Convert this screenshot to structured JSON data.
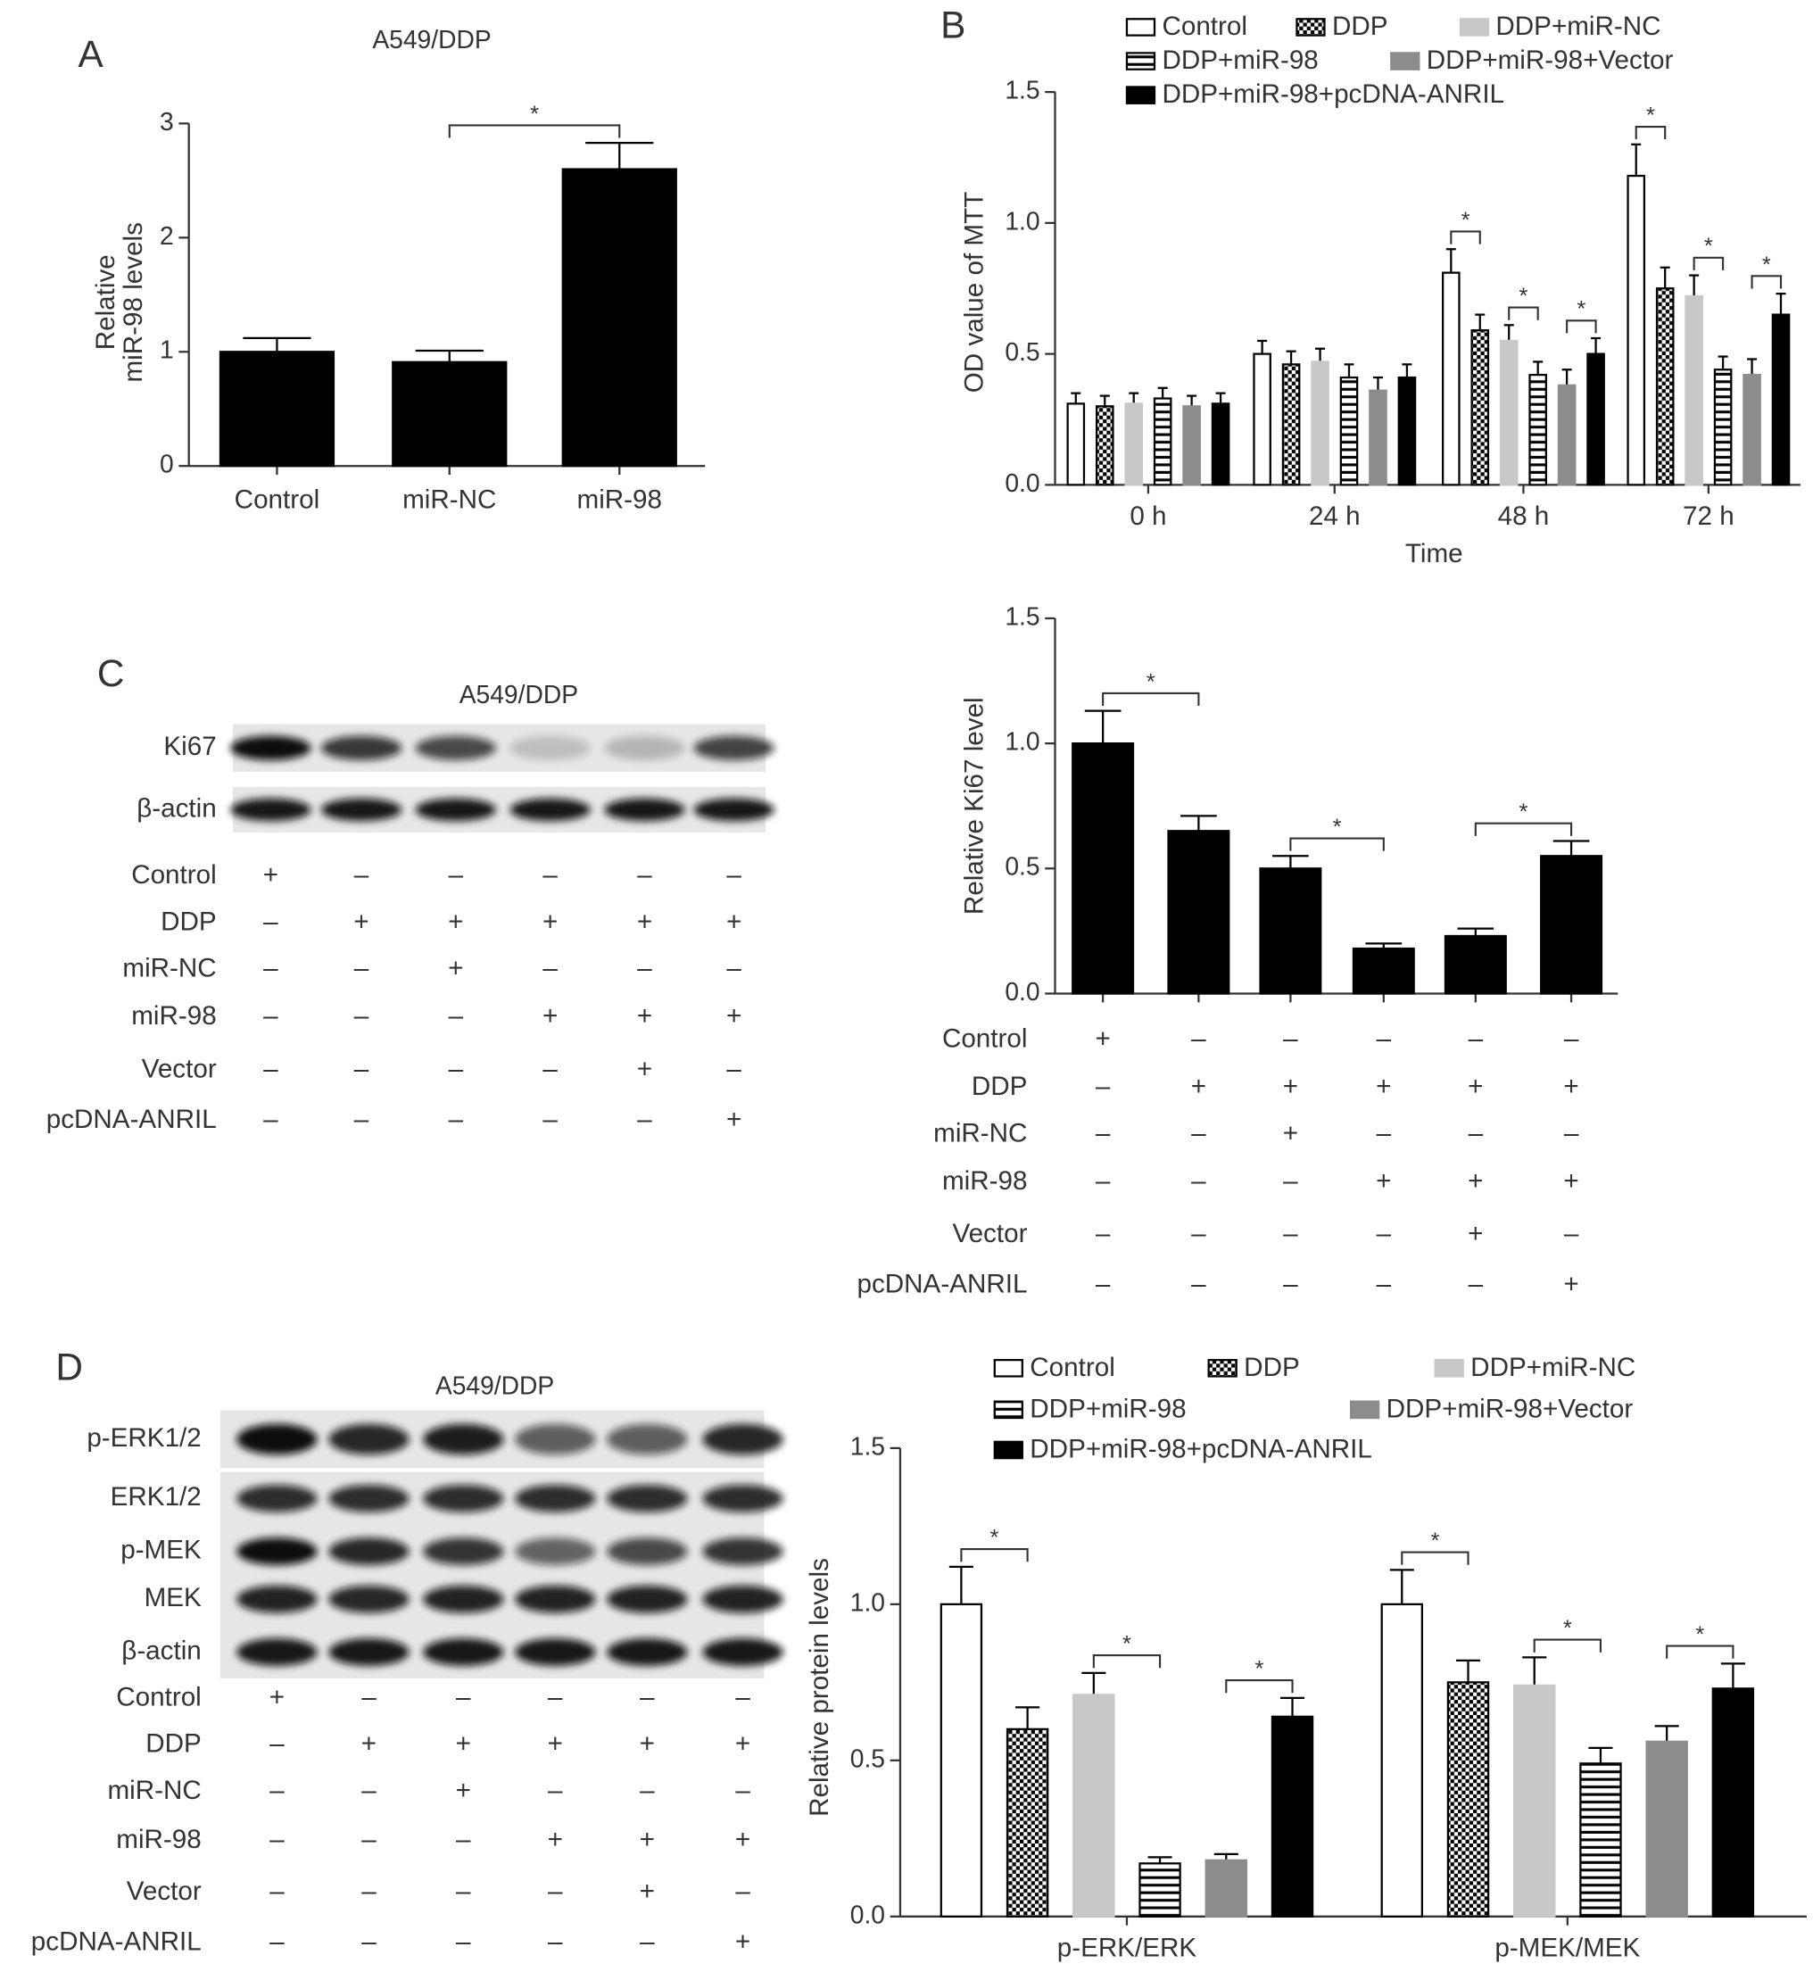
{
  "panel_labels": [
    "A",
    "B",
    "C",
    "D"
  ],
  "chart_data": [
    {
      "type": "bar",
      "title": "A549/DDP",
      "categories": [
        "Control",
        "miR-NC",
        "miR-98"
      ],
      "values": [
        1.0,
        0.91,
        2.6
      ],
      "errors": [
        0.12,
        0.1,
        0.23
      ],
      "color": "#000000",
      "ylabel": [
        "Relative",
        "miR-98 levels"
      ],
      "ylim": [
        0,
        3
      ],
      "yticks": [
        0,
        1,
        2,
        3
      ],
      "significance": [
        {
          "between": [
            1,
            2
          ],
          "label": "*"
        }
      ]
    },
    {
      "type": "grouped_bar",
      "categories": [
        "0 h",
        "24 h",
        "48 h",
        "72 h"
      ],
      "xlabel": "Time",
      "ylabel": "OD value of MTT",
      "ylim": [
        0,
        1.5
      ],
      "yticks": [
        {
          "value": 0,
          "label": "0.0"
        },
        {
          "value": 0.5,
          "label": "0.5"
        },
        {
          "value": 1,
          "label": "1.0"
        },
        {
          "value": 1.5,
          "label": "1.5"
        }
      ],
      "series": [
        {
          "name": "Control",
          "color": "#ffffff",
          "pattern": "none",
          "values": [
            0.31,
            0.5,
            0.81,
            1.18
          ],
          "errors": [
            0.04,
            0.05,
            0.09,
            0.12
          ]
        },
        {
          "name": "DDP",
          "color": "#000000",
          "pattern": "checker",
          "values": [
            0.3,
            0.46,
            0.59,
            0.75
          ],
          "errors": [
            0.04,
            0.05,
            0.06,
            0.08
          ]
        },
        {
          "name": "DDP+miR-NC",
          "color": "#c8c8c8",
          "pattern": "none",
          "values": [
            0.31,
            0.47,
            0.55,
            0.72
          ],
          "errors": [
            0.04,
            0.05,
            0.06,
            0.08
          ]
        },
        {
          "name": "DDP+miR-98",
          "color": "#ffffff",
          "pattern": "hstripe",
          "values": [
            0.33,
            0.41,
            0.42,
            0.44
          ],
          "errors": [
            0.04,
            0.05,
            0.05,
            0.05
          ]
        },
        {
          "name": "DDP+miR-98+Vector",
          "color": "#8c8c8c",
          "pattern": "none",
          "values": [
            0.3,
            0.36,
            0.38,
            0.42
          ],
          "errors": [
            0.04,
            0.05,
            0.06,
            0.06
          ]
        },
        {
          "name": "DDP+miR-98+pcDNA-ANRIL",
          "color": "#000000",
          "pattern": "none",
          "values": [
            0.31,
            0.41,
            0.5,
            0.65
          ],
          "errors": [
            0.04,
            0.05,
            0.06,
            0.08
          ]
        }
      ],
      "significance": [
        {
          "group": 2,
          "between": [
            0,
            1
          ],
          "label": "*"
        },
        {
          "group": 2,
          "between": [
            2,
            3
          ],
          "label": "*"
        },
        {
          "group": 2,
          "between": [
            4,
            5
          ],
          "label": "*"
        },
        {
          "group": 3,
          "between": [
            0,
            1
          ],
          "label": "*"
        },
        {
          "group": 3,
          "between": [
            2,
            3
          ],
          "label": "*"
        },
        {
          "group": 3,
          "between": [
            4,
            5
          ],
          "label": "*"
        }
      ]
    },
    {
      "type": "bar",
      "values": [
        1.0,
        0.65,
        0.5,
        0.18,
        0.23,
        0.55
      ],
      "errors": [
        0.13,
        0.06,
        0.05,
        0.02,
        0.03,
        0.06
      ],
      "color": "#000000",
      "ylabel": "Relative Ki67 level",
      "ylim": [
        0,
        1.5
      ],
      "yticks": [
        {
          "value": 0,
          "label": "0.0"
        },
        {
          "value": 0.5,
          "label": "0.5"
        },
        {
          "value": 1,
          "label": "1.0"
        },
        {
          "value": 1.5,
          "label": "1.5"
        }
      ],
      "significance": [
        {
          "between": [
            0,
            1
          ],
          "label": "*"
        },
        {
          "between": [
            2,
            3
          ],
          "label": "*"
        },
        {
          "between": [
            4,
            5
          ],
          "label": "*"
        }
      ],
      "treatments": [
        {
          "name": "Control",
          "signs": [
            "+",
            "–",
            "–",
            "–",
            "–",
            "–"
          ]
        },
        {
          "name": "DDP",
          "signs": [
            "–",
            "+",
            "+",
            "+",
            "+",
            "+"
          ]
        },
        {
          "name": "miR-NC",
          "signs": [
            "–",
            "–",
            "+",
            "–",
            "–",
            "–"
          ]
        },
        {
          "name": "miR-98",
          "signs": [
            "–",
            "–",
            "–",
            "+",
            "+",
            "+"
          ]
        },
        {
          "name": "Vector",
          "signs": [
            "–",
            "–",
            "–",
            "–",
            "+",
            "–"
          ]
        },
        {
          "name": "pcDNA-ANRIL",
          "signs": [
            "–",
            "–",
            "–",
            "–",
            "–",
            "+"
          ]
        }
      ]
    },
    {
      "type": "grouped_bar",
      "categories": [
        "p-ERK/ERK",
        "p-MEK/MEK"
      ],
      "ylabel": "Relative protein levels",
      "ylim": [
        0,
        1.5
      ],
      "yticks": [
        {
          "value": 0,
          "label": "0.0"
        },
        {
          "value": 0.5,
          "label": "0.5"
        },
        {
          "value": 1,
          "label": "1.0"
        },
        {
          "value": 1.5,
          "label": "1.5"
        }
      ],
      "series": [
        {
          "name": "Control",
          "color": "#ffffff",
          "pattern": "none",
          "values": [
            1.0,
            1.0
          ],
          "errors": [
            0.12,
            0.11
          ]
        },
        {
          "name": "DDP",
          "color": "#000000",
          "pattern": "checker",
          "values": [
            0.6,
            0.75
          ],
          "errors": [
            0.07,
            0.07
          ]
        },
        {
          "name": "DDP+miR-NC",
          "color": "#c8c8c8",
          "pattern": "none",
          "values": [
            0.71,
            0.74
          ],
          "errors": [
            0.07,
            0.09
          ]
        },
        {
          "name": "DDP+miR-98",
          "color": "#ffffff",
          "pattern": "hstripe",
          "values": [
            0.17,
            0.49
          ],
          "errors": [
            0.02,
            0.05
          ]
        },
        {
          "name": "DDP+miR-98+Vector",
          "color": "#8c8c8c",
          "pattern": "none",
          "values": [
            0.18,
            0.56
          ],
          "errors": [
            0.02,
            0.05
          ]
        },
        {
          "name": "DDP+miR-98+pcDNA-ANRIL",
          "color": "#000000",
          "pattern": "none",
          "values": [
            0.64,
            0.73
          ],
          "errors": [
            0.06,
            0.08
          ]
        }
      ],
      "significance": [
        {
          "group": 0,
          "between": [
            0,
            1
          ],
          "label": "*"
        },
        {
          "group": 0,
          "between": [
            2,
            3
          ],
          "label": "*"
        },
        {
          "group": 0,
          "between": [
            4,
            5
          ],
          "label": "*"
        },
        {
          "group": 1,
          "between": [
            0,
            1
          ],
          "label": "*"
        },
        {
          "group": 1,
          "between": [
            2,
            3
          ],
          "label": "*"
        },
        {
          "group": 1,
          "between": [
            4,
            5
          ],
          "label": "*"
        }
      ]
    }
  ],
  "blots": [
    {
      "title": "A549/DDP",
      "rows": [
        "Ki67",
        "β-actin"
      ],
      "treatments": [
        {
          "name": "Control",
          "signs": [
            "+",
            "–",
            "–",
            "–",
            "–",
            "–"
          ]
        },
        {
          "name": "DDP",
          "signs": [
            "–",
            "+",
            "+",
            "+",
            "+",
            "+"
          ]
        },
        {
          "name": "miR-NC",
          "signs": [
            "–",
            "–",
            "+",
            "–",
            "–",
            "–"
          ]
        },
        {
          "name": "miR-98",
          "signs": [
            "–",
            "–",
            "–",
            "+",
            "+",
            "+"
          ]
        },
        {
          "name": "Vector",
          "signs": [
            "–",
            "–",
            "–",
            "–",
            "+",
            "–"
          ]
        },
        {
          "name": "pcDNA-ANRIL",
          "signs": [
            "–",
            "–",
            "–",
            "–",
            "–",
            "+"
          ]
        }
      ]
    },
    {
      "title": "A549/DDP",
      "rows": [
        "p-ERK1/2",
        "ERK1/2",
        "p-MEK",
        "MEK",
        "β-actin"
      ],
      "treatments": [
        {
          "name": "Control",
          "signs": [
            "+",
            "–",
            "–",
            "–",
            "–",
            "–"
          ]
        },
        {
          "name": "DDP",
          "signs": [
            "–",
            "+",
            "+",
            "+",
            "+",
            "+"
          ]
        },
        {
          "name": "miR-NC",
          "signs": [
            "–",
            "–",
            "+",
            "–",
            "–",
            "–"
          ]
        },
        {
          "name": "miR-98",
          "signs": [
            "–",
            "–",
            "–",
            "+",
            "+",
            "+"
          ]
        },
        {
          "name": "Vector",
          "signs": [
            "–",
            "–",
            "–",
            "–",
            "+",
            "–"
          ]
        },
        {
          "name": "pcDNA-ANRIL",
          "signs": [
            "–",
            "–",
            "–",
            "–",
            "–",
            "+"
          ]
        }
      ]
    }
  ]
}
